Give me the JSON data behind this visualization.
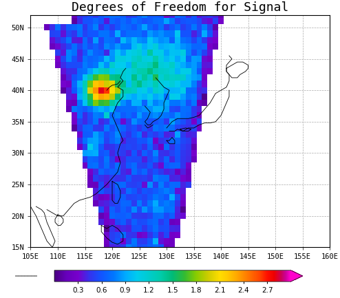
{
  "title": "Degrees of Freedom for Signal",
  "lon_min": 105,
  "lon_max": 160,
  "lat_min": 15,
  "lat_max": 52,
  "lon_ticks": [
    105,
    110,
    115,
    120,
    125,
    130,
    135,
    140,
    145,
    150,
    155,
    160
  ],
  "lat_ticks": [
    15,
    20,
    25,
    30,
    35,
    40,
    45,
    50
  ],
  "colorbar_ticks": [
    0.3,
    0.6,
    0.9,
    1.2,
    1.5,
    1.8,
    2.1,
    2.4,
    2.7
  ],
  "vmin": 0.0,
  "vmax": 3.0,
  "cmap_colors_positions": [
    [
      0.0,
      "#4B0082"
    ],
    [
      0.05,
      "#6600BB"
    ],
    [
      0.1,
      "#7700CC"
    ],
    [
      0.15,
      "#3333EE"
    ],
    [
      0.2,
      "#1155FF"
    ],
    [
      0.25,
      "#0077FF"
    ],
    [
      0.3,
      "#00AAFF"
    ],
    [
      0.35,
      "#00CCEE"
    ],
    [
      0.4,
      "#00CCCC"
    ],
    [
      0.45,
      "#00CCAA"
    ],
    [
      0.5,
      "#00BB77"
    ],
    [
      0.55,
      "#33BB33"
    ],
    [
      0.6,
      "#88CC00"
    ],
    [
      0.65,
      "#CCCC00"
    ],
    [
      0.7,
      "#FFDD00"
    ],
    [
      0.73,
      "#FFCC00"
    ],
    [
      0.77,
      "#FFAA00"
    ],
    [
      0.82,
      "#FF7700"
    ],
    [
      0.87,
      "#FF4400"
    ],
    [
      0.9,
      "#FF1100"
    ],
    [
      0.93,
      "#EE0000"
    ],
    [
      0.96,
      "#CC0055"
    ],
    [
      0.98,
      "#CC0099"
    ],
    [
      1.0,
      "#FF00CC"
    ]
  ],
  "grid_color": "#aaaaaa",
  "background_color": "#ffffff",
  "coast_color": "#000000",
  "title_fontsize": 13,
  "tick_fontsize": 7.5
}
